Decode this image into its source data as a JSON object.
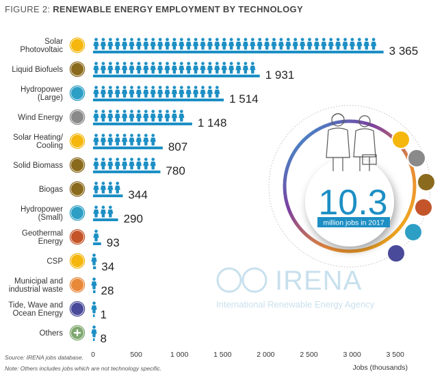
{
  "figure": {
    "prefix": "FIGURE 2:",
    "title": "RENEWABLE ENERGY EMPLOYMENT BY TECHNOLOGY"
  },
  "chart_data": {
    "type": "bar",
    "orientation": "horizontal",
    "categories": [
      "Solar Photovoltaic",
      "Liquid Biofuels",
      "Hydropower (Large)",
      "Wind Energy",
      "Solar Heating/ Cooling",
      "Solid Biomass",
      "Biogas",
      "Hydropower (Small)",
      "Geothermal Energy",
      "CSP",
      "Municipal and industrial waste",
      "Tide, Wave and Ocean Energy",
      "Others"
    ],
    "category_label_lines": [
      [
        "Solar",
        "Photovoltaic"
      ],
      [
        "Liquid Biofuels"
      ],
      [
        "Hydropower",
        "(Large)"
      ],
      [
        "Wind Energy"
      ],
      [
        "Solar Heating/",
        "Cooling"
      ],
      [
        "Solid Biomass"
      ],
      [
        "Biogas"
      ],
      [
        "Hydropower",
        "(Small)"
      ],
      [
        "Geothermal",
        "Energy"
      ],
      [
        "CSP"
      ],
      [
        "Municipal and",
        "industrial waste"
      ],
      [
        "Tide, Wave and",
        "Ocean Energy"
      ],
      [
        "Others"
      ]
    ],
    "values": [
      3365,
      1931,
      1514,
      1148,
      807,
      780,
      344,
      290,
      93,
      34,
      28,
      1,
      8
    ],
    "value_labels": [
      "3 365",
      "1 931",
      "1 514",
      "1 148",
      "807",
      "780",
      "344",
      "290",
      "93",
      "34",
      "28",
      "1",
      "8"
    ],
    "icons": [
      "sun-icon",
      "leaf-icon",
      "water-drop-icon",
      "wind-icon",
      "sun-icon",
      "leaf-icon",
      "leaf-icon",
      "water-drop-icon",
      "volcano-icon",
      "sun-icon",
      "waste-icon",
      "wave-icon",
      "plus-icon"
    ],
    "icon_colors": [
      "#f5b70e",
      "#8a6a1c",
      "#2e9fc4",
      "#8a8a8a",
      "#f5b70e",
      "#8a6a1c",
      "#8a6a1c",
      "#2e9fc4",
      "#c4552a",
      "#f5b70e",
      "#e8893a",
      "#4a4a9a",
      "#7fa870"
    ],
    "xticks": [
      0,
      500,
      1000,
      1500,
      2000,
      2500,
      3000,
      3500
    ],
    "xtick_labels": [
      "0",
      "500",
      "1 000",
      "1 500",
      "2 000",
      "2 500",
      "3 000",
      "3 500"
    ],
    "xlim": [
      0,
      3600
    ],
    "xlabel": "Jobs (thousands)",
    "bar_color": "#1d8fc4"
  },
  "infographic": {
    "total": "10.3",
    "subtitle": "million jobs in 2017"
  },
  "watermark": {
    "org": "IRENA",
    "full_name": "International Renewable Energy Agency"
  },
  "source": "Source: IRENA jobs database.",
  "note": "Note: Others includes jobs which are not technology specific."
}
